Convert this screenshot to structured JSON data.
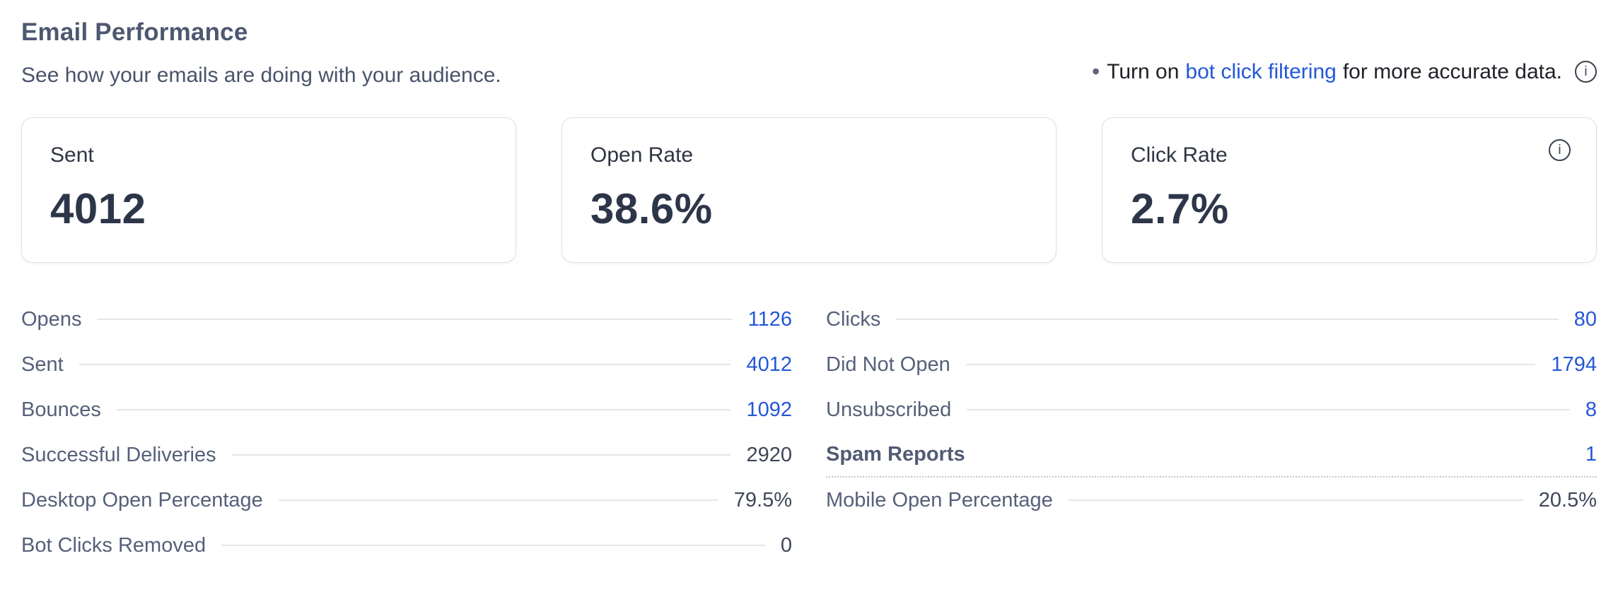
{
  "header": {
    "title": "Email Performance",
    "subtitle": "See how your emails are doing with your audience.",
    "annotation": {
      "bullet": "•",
      "prefix": "Turn on",
      "link_text": "bot click filtering",
      "suffix": "for more accurate data.",
      "info_icon": "info-circle-icon",
      "info_glyph": "i"
    }
  },
  "summary_cards": [
    {
      "label": "Sent",
      "value": "4012"
    },
    {
      "label": "Open Rate",
      "value": "38.6%"
    },
    {
      "label": "Click Rate",
      "value": "2.7%",
      "info_icon": "info-circle-icon",
      "info_glyph": "i"
    }
  ],
  "stats": {
    "left_column": [
      {
        "label": "Opens",
        "value": "1126",
        "link": true
      },
      {
        "label": "Sent",
        "value": "4012",
        "link": true
      },
      {
        "label": "Bounces",
        "value": "1092",
        "link": true
      },
      {
        "label": "Successful Deliveries",
        "value": "2920",
        "link": false
      },
      {
        "label": "Desktop Open Percentage",
        "value": "79.5%",
        "link": false
      },
      {
        "label": "Bot Clicks Removed",
        "value": "0",
        "link": false
      }
    ],
    "right_column": [
      {
        "label": "Clicks",
        "value": "80",
        "link": true
      },
      {
        "label": "Did Not Open",
        "value": "1794",
        "link": true
      },
      {
        "label": "Unsubscribed",
        "value": "8",
        "link": true
      },
      {
        "label": "Spam Reports",
        "value": "1",
        "link": true,
        "emphasized": true
      },
      {
        "label": "Mobile Open Percentage",
        "value": "20.5%",
        "link": false
      }
    ]
  },
  "colors": {
    "accent_blue": "#2357d8",
    "heading_slate": "#4d5870",
    "dark_value": "#2d3649",
    "stat_label": "#56607a",
    "card_border": "#dce0e9",
    "leader_line": "#e4e6eb"
  }
}
